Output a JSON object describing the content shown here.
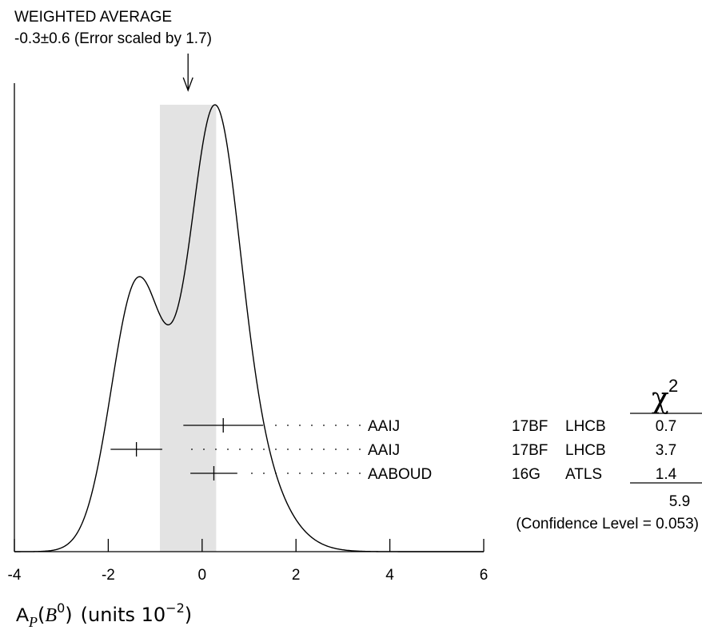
{
  "chart_data": {
    "type": "ideogram",
    "title": "WEIGHTED AVERAGE",
    "subtitle": "-0.3±0.6 (Error scaled by 1.7)",
    "average": {
      "value": -0.3,
      "error": 0.6,
      "scale_factor": 1.7
    },
    "xlim": [
      -4,
      6
    ],
    "ticks": [
      -4,
      -2,
      0,
      2,
      4,
      6
    ],
    "tick_labels": [
      "-4",
      "-2",
      "0",
      "2",
      "4",
      "6"
    ],
    "xlabel": {
      "base": "A",
      "sub": "P",
      "arg_open": "(",
      "arg": "B",
      "arg_sup": "0",
      "arg_close": ")",
      "units": "(units 10",
      "units_exp": "−2",
      "units_close": ")"
    },
    "measurements": [
      {
        "value": 0.45,
        "error": 0.85,
        "name": "AAIJ",
        "year": "17BF",
        "experiment": "LHCB",
        "chi2": "0.7"
      },
      {
        "value": -1.4,
        "error": 0.55,
        "name": "AAIJ",
        "year": "17BF",
        "experiment": "LHCB",
        "chi2": "3.7"
      },
      {
        "value": 0.25,
        "error": 0.5,
        "name": "AABOUD",
        "year": "16G",
        "experiment": "ATLS",
        "chi2": "1.4"
      }
    ],
    "chi2_header": "χ",
    "chi2_header_exp": "2",
    "chi2_total": "5.9",
    "confidence_level": "(Confidence Level = 0.053)"
  }
}
